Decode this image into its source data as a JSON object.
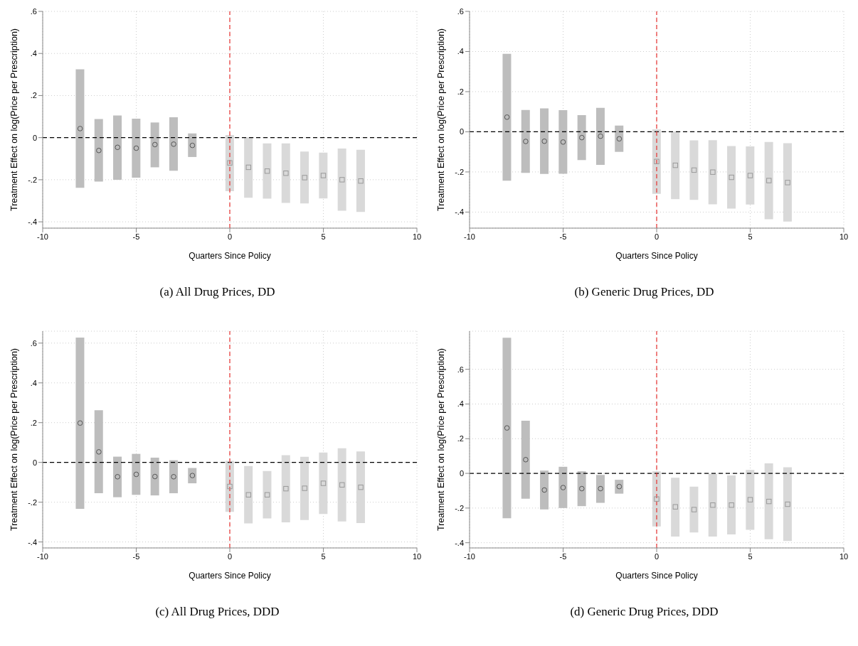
{
  "chart_data": [
    {
      "type": "bar",
      "title": "(a)  All Drug Prices, DD",
      "xlabel": "Quarters Since Policy",
      "ylabel": "Treatment Effect on log(Price per Prescription)",
      "xlim": [
        -10,
        10
      ],
      "xticks": [
        -10,
        -5,
        0,
        5,
        10
      ],
      "ylim": [
        -0.43,
        0.6
      ],
      "yticks": [
        {
          "value": -0.4,
          "label": "-.4"
        },
        {
          "value": -0.2,
          "label": "-.2"
        },
        {
          "value": 0,
          "label": "0"
        },
        {
          "value": 0.2,
          "label": ".2"
        },
        {
          "value": 0.4,
          "label": ".4"
        },
        {
          "value": 0.6,
          "label": ".6"
        }
      ],
      "grid": true,
      "ref_lines": [
        {
          "axis": "y",
          "value": 0,
          "color": "#000000",
          "line_style": "dashed"
        },
        {
          "axis": "x",
          "value": 0,
          "color": "#e8312f",
          "line_style": "dashed"
        }
      ],
      "series": [
        {
          "color": "#bdbdbd",
          "x": [
            -8,
            -7,
            -6,
            -5,
            -4,
            -3,
            -2
          ],
          "base": [
            -0.238,
            -0.209,
            -0.2,
            -0.19,
            -0.141,
            -0.157,
            -0.092
          ],
          "values": [
            0.563,
            0.297,
            0.305,
            0.28,
            0.213,
            0.254,
            0.112
          ]
        },
        {
          "color": "#d9d9d9",
          "x": [
            0,
            1,
            2,
            3,
            4,
            5,
            6,
            7
          ],
          "base": [
            -0.254,
            -0.286,
            -0.29,
            -0.31,
            -0.313,
            -0.289,
            -0.347,
            -0.353
          ],
          "values": [
            0.266,
            0.287,
            0.263,
            0.283,
            0.247,
            0.218,
            0.295,
            0.295
          ]
        },
        {
          "type": "scatter",
          "color": "#555555",
          "marker": "circle",
          "x": [
            -8,
            -7,
            -6,
            -5,
            -4,
            -3,
            -2
          ],
          "values": [
            0.043,
            -0.061,
            -0.046,
            -0.05,
            -0.033,
            -0.031,
            -0.037
          ]
        },
        {
          "type": "scatter",
          "color": "#999999",
          "marker": "square",
          "x": [
            0,
            1,
            2,
            3,
            4,
            5,
            6,
            7
          ],
          "values": [
            -0.12,
            -0.141,
            -0.159,
            -0.169,
            -0.19,
            -0.18,
            -0.2,
            -0.206
          ]
        }
      ]
    },
    {
      "type": "bar",
      "title": "(b)  Generic Drug Prices, DD",
      "xlabel": "Quarters Since Policy",
      "ylabel": "Treatment Effect on log(Price per Prescription)",
      "xlim": [
        -10,
        10
      ],
      "xticks": [
        -10,
        -5,
        0,
        5,
        10
      ],
      "ylim": [
        -0.48,
        0.6
      ],
      "yticks": [
        {
          "value": -0.4,
          "label": "-.4"
        },
        {
          "value": -0.2,
          "label": "-.2"
        },
        {
          "value": 0,
          "label": "0"
        },
        {
          "value": 0.2,
          "label": ".2"
        },
        {
          "value": 0.4,
          "label": ".4"
        },
        {
          "value": 0.6,
          "label": ".6"
        }
      ],
      "grid": true,
      "ref_lines": [
        {
          "axis": "y",
          "value": 0,
          "color": "#000000",
          "line_style": "dashed"
        },
        {
          "axis": "x",
          "value": 0,
          "color": "#e8312f",
          "line_style": "dashed"
        }
      ],
      "series": [
        {
          "color": "#bdbdbd",
          "x": [
            -8,
            -7,
            -6,
            -5,
            -4,
            -3,
            -2
          ],
          "base": [
            -0.244,
            -0.205,
            -0.21,
            -0.209,
            -0.141,
            -0.165,
            -0.1
          ],
          "values": [
            0.632,
            0.314,
            0.327,
            0.317,
            0.224,
            0.284,
            0.131
          ]
        },
        {
          "color": "#d9d9d9",
          "x": [
            0,
            1,
            2,
            3,
            4,
            5,
            6,
            7
          ],
          "base": [
            -0.309,
            -0.336,
            -0.339,
            -0.361,
            -0.383,
            -0.362,
            -0.436,
            -0.447
          ],
          "values": [
            0.321,
            0.336,
            0.296,
            0.319,
            0.312,
            0.289,
            0.385,
            0.39
          ]
        },
        {
          "type": "scatter",
          "color": "#555555",
          "marker": "circle",
          "x": [
            -8,
            -7,
            -6,
            -5,
            -4,
            -3,
            -2
          ],
          "values": [
            0.073,
            -0.048,
            -0.047,
            -0.051,
            -0.029,
            -0.022,
            -0.035
          ]
        },
        {
          "type": "scatter",
          "color": "#999999",
          "marker": "square",
          "x": [
            0,
            1,
            2,
            3,
            4,
            5,
            6,
            7
          ],
          "values": [
            -0.148,
            -0.167,
            -0.191,
            -0.201,
            -0.227,
            -0.218,
            -0.243,
            -0.253
          ]
        }
      ]
    },
    {
      "type": "bar",
      "title": "(c)  All Drug Prices, DDD",
      "xlabel": "Quarters Since Policy",
      "ylabel": "Treatment Effect on log(Price per Prescription)",
      "xlim": [
        -10,
        10
      ],
      "xticks": [
        -10,
        -5,
        0,
        5,
        10
      ],
      "ylim": [
        -0.43,
        0.66
      ],
      "yticks": [
        {
          "value": -0.4,
          "label": "-.4"
        },
        {
          "value": -0.2,
          "label": "-.2"
        },
        {
          "value": 0,
          "label": "0"
        },
        {
          "value": 0.2,
          "label": ".2"
        },
        {
          "value": 0.4,
          "label": ".4"
        },
        {
          "value": 0.6,
          "label": ".6"
        }
      ],
      "grid": true,
      "ref_lines": [
        {
          "axis": "y",
          "value": 0,
          "color": "#000000",
          "line_style": "dashed"
        },
        {
          "axis": "x",
          "value": 0,
          "color": "#e8312f",
          "line_style": "dashed"
        }
      ],
      "series": [
        {
          "color": "#bdbdbd",
          "x": [
            -8,
            -7,
            -6,
            -5,
            -4,
            -3,
            -2
          ],
          "base": [
            -0.233,
            -0.155,
            -0.175,
            -0.163,
            -0.166,
            -0.155,
            -0.105
          ],
          "values": [
            0.861,
            0.417,
            0.204,
            0.206,
            0.19,
            0.166,
            0.077
          ]
        },
        {
          "color": "#d9d9d9",
          "x": [
            0,
            1,
            2,
            3,
            4,
            5,
            6,
            7
          ],
          "base": [
            -0.249,
            -0.307,
            -0.282,
            -0.301,
            -0.29,
            -0.259,
            -0.297,
            -0.305
          ],
          "values": [
            0.257,
            0.289,
            0.239,
            0.337,
            0.318,
            0.309,
            0.368,
            0.36
          ]
        },
        {
          "type": "scatter",
          "color": "#555555",
          "marker": "circle",
          "x": [
            -8,
            -7,
            -6,
            -5,
            -4,
            -3,
            -2
          ],
          "values": [
            0.198,
            0.053,
            -0.072,
            -0.06,
            -0.071,
            -0.072,
            -0.066
          ]
        },
        {
          "type": "scatter",
          "color": "#999999",
          "marker": "square",
          "x": [
            0,
            1,
            2,
            3,
            4,
            5,
            6,
            7
          ],
          "values": [
            -0.121,
            -0.163,
            -0.163,
            -0.132,
            -0.13,
            -0.105,
            -0.113,
            -0.125
          ]
        }
      ]
    },
    {
      "type": "bar",
      "title": "(d)  Generic Drug Prices, DDD",
      "xlabel": "Quarters Since Policy",
      "ylabel": "Treatment Effect on log(Price per Prescription)",
      "xlim": [
        -10,
        10
      ],
      "xticks": [
        -10,
        -5,
        0,
        5,
        10
      ],
      "ylim": [
        -0.43,
        0.82
      ],
      "yticks": [
        {
          "value": -0.4,
          "label": "-.4"
        },
        {
          "value": -0.2,
          "label": "-.2"
        },
        {
          "value": 0,
          "label": "0"
        },
        {
          "value": 0.2,
          "label": ".2"
        },
        {
          "value": 0.4,
          "label": ".4"
        },
        {
          "value": 0.6,
          "label": ".6"
        }
      ],
      "grid": true,
      "ref_lines": [
        {
          "axis": "y",
          "value": 0,
          "color": "#000000",
          "line_style": "dashed"
        },
        {
          "axis": "x",
          "value": 0,
          "color": "#e8312f",
          "line_style": "dashed"
        }
      ],
      "series": [
        {
          "color": "#bdbdbd",
          "x": [
            -8,
            -7,
            -6,
            -5,
            -4,
            -3,
            -2
          ],
          "base": [
            -0.259,
            -0.146,
            -0.208,
            -0.2,
            -0.189,
            -0.17,
            -0.117
          ],
          "values": [
            1.041,
            0.45,
            0.224,
            0.238,
            0.201,
            0.161,
            0.08
          ]
        },
        {
          "color": "#d9d9d9",
          "x": [
            0,
            1,
            2,
            3,
            4,
            5,
            6,
            7
          ],
          "base": [
            -0.306,
            -0.364,
            -0.341,
            -0.364,
            -0.352,
            -0.325,
            -0.38,
            -0.39
          ],
          "values": [
            0.318,
            0.339,
            0.264,
            0.361,
            0.34,
            0.345,
            0.438,
            0.425
          ]
        },
        {
          "type": "scatter",
          "color": "#555555",
          "marker": "circle",
          "x": [
            -8,
            -7,
            -6,
            -5,
            -4,
            -3,
            -2
          ],
          "values": [
            0.262,
            0.079,
            -0.096,
            -0.082,
            -0.088,
            -0.088,
            -0.076
          ]
        },
        {
          "type": "scatter",
          "color": "#999999",
          "marker": "square",
          "x": [
            0,
            1,
            2,
            3,
            4,
            5,
            6,
            7
          ],
          "values": [
            -0.148,
            -0.193,
            -0.209,
            -0.183,
            -0.183,
            -0.152,
            -0.162,
            -0.178
          ]
        }
      ]
    }
  ]
}
